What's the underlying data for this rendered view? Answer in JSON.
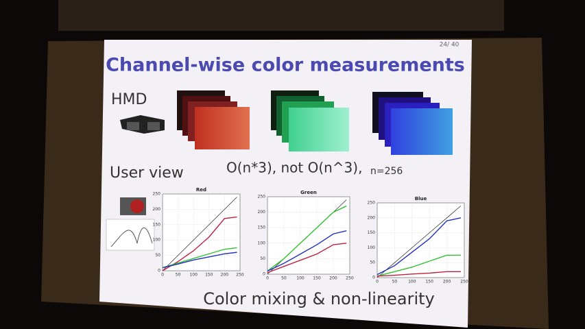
{
  "slide": {
    "page": "24/ 40",
    "title": "Channel-wise color measurements",
    "hmd": "HMD",
    "user_view": "User view",
    "complexity": "O(n*3), not O(n^3),",
    "n": "n=256",
    "caption": "Color mixing & non-linearity"
  },
  "chart_data": [
    {
      "type": "line",
      "title": "Red",
      "x": [
        0,
        50,
        100,
        150,
        200,
        240
      ],
      "xlim": [
        0,
        250
      ],
      "ylim": [
        0,
        250
      ],
      "xticks": [
        0,
        50,
        100,
        150,
        200,
        250
      ],
      "yticks": [
        0,
        50,
        100,
        150,
        200,
        250
      ],
      "series": [
        {
          "color": "#222222",
          "values": [
            0,
            50,
            100,
            150,
            200,
            240
          ]
        },
        {
          "color": "#c02040",
          "values": [
            0,
            30,
            65,
            110,
            170,
            175
          ]
        },
        {
          "color": "#30c030",
          "values": [
            10,
            25,
            40,
            55,
            70,
            75
          ]
        },
        {
          "color": "#2030c0",
          "values": [
            10,
            22,
            35,
            45,
            55,
            60
          ]
        }
      ]
    },
    {
      "type": "line",
      "title": "Green",
      "x": [
        0,
        50,
        100,
        150,
        200,
        240
      ],
      "xlim": [
        0,
        250
      ],
      "ylim": [
        0,
        250
      ],
      "xticks": [
        0,
        50,
        100,
        150,
        200,
        250
      ],
      "yticks": [
        0,
        50,
        100,
        150,
        200,
        250
      ],
      "series": [
        {
          "color": "#222222",
          "values": [
            0,
            50,
            100,
            150,
            200,
            240
          ]
        },
        {
          "color": "#30c030",
          "values": [
            10,
            50,
            100,
            150,
            200,
            220
          ]
        },
        {
          "color": "#2030c0",
          "values": [
            10,
            35,
            65,
            95,
            130,
            140
          ]
        },
        {
          "color": "#c02040",
          "values": [
            5,
            25,
            45,
            65,
            95,
            100
          ]
        }
      ]
    },
    {
      "type": "line",
      "title": "Blue",
      "x": [
        0,
        50,
        100,
        150,
        200,
        240
      ],
      "xlim": [
        0,
        250
      ],
      "ylim": [
        0,
        250
      ],
      "xticks": [
        0,
        50,
        100,
        150,
        200,
        250
      ],
      "yticks": [
        0,
        50,
        100,
        150,
        200,
        250
      ],
      "series": [
        {
          "color": "#222222",
          "values": [
            0,
            50,
            100,
            150,
            200,
            240
          ]
        },
        {
          "color": "#2030c0",
          "values": [
            10,
            40,
            85,
            130,
            190,
            200
          ]
        },
        {
          "color": "#30c030",
          "values": [
            5,
            20,
            35,
            55,
            75,
            75
          ]
        },
        {
          "color": "#c02040",
          "values": [
            5,
            8,
            12,
            15,
            20,
            20
          ]
        }
      ]
    }
  ]
}
